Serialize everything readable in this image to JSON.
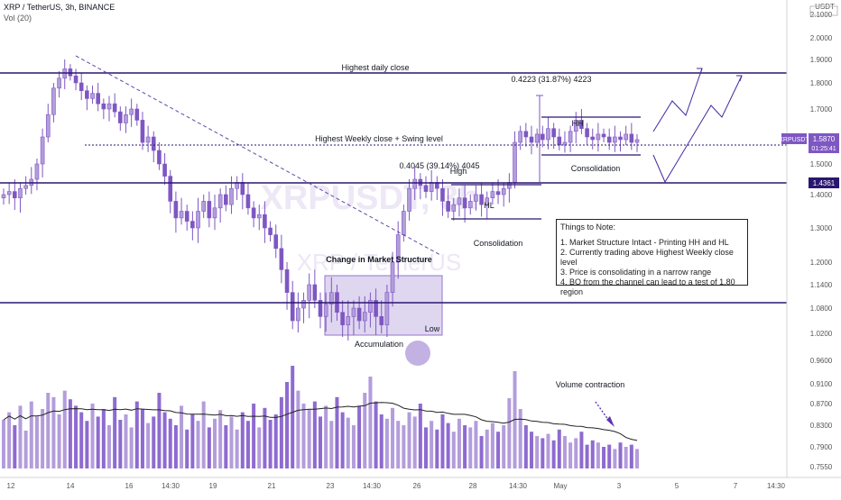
{
  "header": {
    "symbol_line": "XRP / TetherUS, 3h, BINANCE",
    "volume_label": "Vol (20)"
  },
  "watermark": {
    "symbol": "XRPUSDT, 3h",
    "name": "XRP / TetherUS"
  },
  "price_axis": {
    "unit_label": "USDT",
    "last_price_symbol": "XRPUSDT",
    "last_price": "1.5870",
    "countdown": "01:25:41",
    "level_badge": "1.4361"
  },
  "annotations": {
    "highest_daily_close": "Highest daily close",
    "highest_weekly_close": "Highest Weekly close + Swing level",
    "move_1": "0.4223 (31.87%) 4223",
    "move_2": "0.4045 (39.14%) 4045",
    "hh": "HH",
    "hl": "HL",
    "high": "High",
    "low": "Low",
    "consolidation_upper": "Consolidation",
    "consolidation_lower": "Consolidation",
    "change_structure": "Change in Market Structure",
    "accumulation": "Accumulation",
    "volume_contraction": "Volume contraction"
  },
  "notes": {
    "title": "Things to Note:",
    "items": [
      "1. Market Structure Intact - Printing HH and HL",
      "2. Currently trading above Highest Weekly close level",
      "3. Price is consolidating in a narrow range",
      "4. BO from the channel can lead to a test of 1.80 region"
    ]
  },
  "colors": {
    "accent": "#3b1f8f",
    "candle": "#7e57c2",
    "candle_light": "#b39ddb",
    "volume": "#9575cd",
    "box": "#d1c4e9",
    "circle": "#b39ddb",
    "line": "#2a1670"
  },
  "chart_data": {
    "type": "candlestick",
    "title": "XRP / TetherUS, 3h, BINANCE",
    "ylim": [
      0.74,
      2.1
    ],
    "y_ticks": [
      "2.1000",
      "2.0000",
      "1.9000",
      "1.8000",
      "1.7000",
      "1.6000",
      "1.5000",
      "1.4000",
      "1.3000",
      "1.2000",
      "1.1400",
      "1.0800",
      "1.0200",
      "0.9600",
      "0.9100",
      "0.8700",
      "0.8300",
      "0.7900",
      "0.7550"
    ],
    "x_ticks": [
      "12",
      "14",
      "16",
      "14:30",
      "19",
      "21",
      "23",
      "14:30",
      "26",
      "28",
      "14:30",
      "May",
      "3",
      "5",
      "7",
      "14:30"
    ],
    "horizontal_levels": [
      1.84,
      1.56,
      1.4361,
      1.1
    ],
    "close_series": [
      1.4,
      1.41,
      1.39,
      1.42,
      1.43,
      1.45,
      1.5,
      1.6,
      1.68,
      1.78,
      1.82,
      1.86,
      1.83,
      1.8,
      1.77,
      1.74,
      1.76,
      1.72,
      1.7,
      1.72,
      1.69,
      1.65,
      1.68,
      1.7,
      1.66,
      1.58,
      1.6,
      1.55,
      1.5,
      1.46,
      1.38,
      1.33,
      1.35,
      1.32,
      1.3,
      1.35,
      1.38,
      1.33,
      1.36,
      1.4,
      1.37,
      1.42,
      1.44,
      1.4,
      1.36,
      1.33,
      1.34,
      1.3,
      1.28,
      1.24,
      1.18,
      1.12,
      1.05,
      1.08,
      1.1,
      1.14,
      1.1,
      1.06,
      1.09,
      1.12,
      1.07,
      1.04,
      1.06,
      1.08,
      1.05,
      1.07,
      1.1,
      1.06,
      1.04,
      1.12,
      1.2,
      1.28,
      1.35,
      1.42,
      1.45,
      1.43,
      1.41,
      1.44,
      1.42,
      1.38,
      1.35,
      1.37,
      1.39,
      1.36,
      1.38,
      1.4,
      1.37,
      1.39,
      1.41,
      1.4,
      1.42,
      1.44,
      1.58,
      1.62,
      1.6,
      1.58,
      1.61,
      1.59,
      1.63,
      1.6,
      1.57,
      1.58,
      1.62,
      1.66,
      1.63,
      1.6,
      1.59,
      1.61,
      1.6,
      1.58,
      1.6,
      1.59,
      1.61,
      1.58,
      1.59
    ],
    "volume_series": [
      0.45,
      0.52,
      0.4,
      0.58,
      0.35,
      0.62,
      0.48,
      0.55,
      0.7,
      0.66,
      0.5,
      0.72,
      0.64,
      0.58,
      0.52,
      0.44,
      0.6,
      0.48,
      0.55,
      0.4,
      0.66,
      0.45,
      0.5,
      0.38,
      0.62,
      0.55,
      0.42,
      0.48,
      0.7,
      0.52,
      0.46,
      0.4,
      0.58,
      0.36,
      0.5,
      0.44,
      0.62,
      0.38,
      0.46,
      0.54,
      0.4,
      0.48,
      0.36,
      0.52,
      0.44,
      0.6,
      0.38,
      0.56,
      0.45,
      0.5,
      0.66,
      0.8,
      0.95,
      0.72,
      0.6,
      0.55,
      0.62,
      0.48,
      0.58,
      0.44,
      0.66,
      0.52,
      0.47,
      0.4,
      0.58,
      0.7,
      0.85,
      0.62,
      0.5,
      0.46,
      0.56,
      0.44,
      0.4,
      0.52,
      0.48,
      0.6,
      0.38,
      0.44,
      0.36,
      0.5,
      0.42,
      0.34,
      0.46,
      0.4,
      0.38,
      0.44,
      0.3,
      0.36,
      0.42,
      0.34,
      0.4,
      0.65,
      0.9,
      0.55,
      0.4,
      0.34,
      0.3,
      0.28,
      0.32,
      0.26,
      0.36,
      0.3,
      0.24,
      0.28,
      0.34,
      0.22,
      0.26,
      0.24,
      0.2,
      0.22,
      0.18,
      0.24,
      0.2,
      0.22,
      0.18
    ],
    "xlabel": "",
    "ylabel": ""
  }
}
